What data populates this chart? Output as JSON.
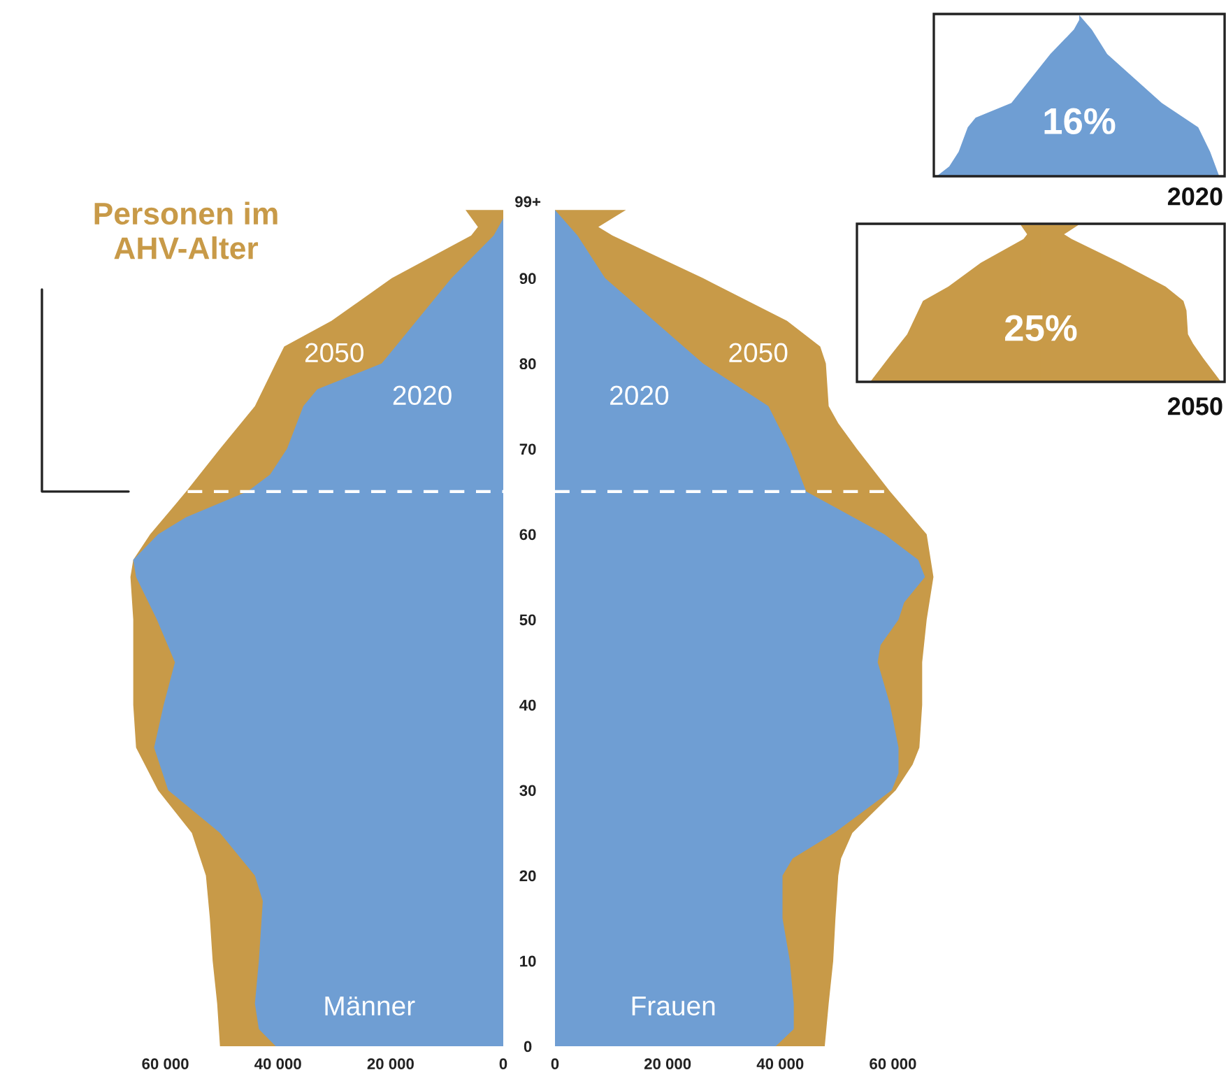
{
  "chart_data": [
    {
      "type": "area",
      "orientation": "horizontal",
      "xlim": [
        70000,
        0
      ],
      "xticks": [
        {
          "value": 60000,
          "label": "60 000"
        },
        {
          "value": 40000,
          "label": "40 000"
        },
        {
          "value": 20000,
          "label": "20 000"
        },
        0
      ],
      "ylim": [
        0,
        99
      ],
      "tick_labels": "x",
      "series": [
        {
          "name": "2050",
          "color": "#c89a48",
          "x": [
            0,
            5,
            10,
            15,
            20,
            25,
            30,
            35,
            40,
            45,
            50,
            55,
            57,
            60,
            65,
            70,
            75,
            80,
            82,
            85,
            90,
            95,
            96,
            98
          ],
          "values": [
            50300,
            50800,
            51600,
            52100,
            52800,
            55300,
            61300,
            65200,
            65700,
            65700,
            65700,
            66200,
            65700,
            62700,
            56300,
            50300,
            44100,
            40400,
            38900,
            30500,
            19800,
            5700,
            4500,
            6700
          ]
        },
        {
          "name": "2020",
          "color": "#6f9ed3",
          "x": [
            0,
            2,
            5,
            10,
            15,
            17,
            20,
            25,
            30,
            35,
            40,
            45,
            50,
            55,
            57,
            60,
            62,
            65,
            67,
            70,
            75,
            77,
            80,
            85,
            90,
            95,
            97
          ],
          "values": [
            40400,
            43400,
            44100,
            43400,
            42900,
            42700,
            44100,
            50300,
            59500,
            62000,
            60300,
            58300,
            61500,
            65200,
            65700,
            61300,
            56300,
            45400,
            41400,
            38400,
            35500,
            33000,
            21600,
            15400,
            9200,
            1700,
            0
          ]
        }
      ],
      "ref_lines": [
        {
          "axis": "y",
          "value": 65,
          "color": "#ffffff",
          "line_style": "dashed"
        }
      ],
      "annotations": [
        "Männer",
        "Personen im\nAHV-Alter"
      ]
    },
    {
      "type": "area",
      "orientation": "horizontal",
      "xlim": [
        0,
        70000
      ],
      "xticks": [
        0,
        {
          "value": 20000,
          "label": "20 000"
        },
        {
          "value": 40000,
          "label": "40 000"
        },
        {
          "value": 60000,
          "label": "60 000"
        }
      ],
      "ylim": [
        0,
        99
      ],
      "yticks": [
        0,
        10,
        20,
        30,
        40,
        50,
        60,
        70,
        80,
        90,
        {
          "value": 99,
          "label": "99+"
        }
      ],
      "series": [
        {
          "name": "2050",
          "color": "#c89a48",
          "x": [
            0,
            5,
            10,
            15,
            20,
            22,
            25,
            30,
            33,
            35,
            40,
            45,
            50,
            55,
            60,
            65,
            70,
            73,
            75,
            80,
            82,
            85,
            90,
            95,
            96,
            98
          ],
          "values": [
            47900,
            48600,
            49400,
            49800,
            50300,
            50800,
            52800,
            60500,
            63500,
            64700,
            65200,
            65200,
            66000,
            67200,
            66000,
            59500,
            53600,
            50300,
            48600,
            48100,
            47100,
            41200,
            26300,
            10200,
            7700,
            12600
          ]
        },
        {
          "name": "2020",
          "color": "#6f9ed3",
          "x": [
            0,
            2,
            5,
            10,
            15,
            20,
            22,
            25,
            30,
            32,
            35,
            40,
            45,
            47,
            50,
            52,
            55,
            57,
            60,
            65,
            70,
            75,
            80,
            85,
            90,
            95,
            98
          ],
          "values": [
            39200,
            42400,
            42400,
            41700,
            40400,
            40400,
            42200,
            49600,
            59800,
            61000,
            61000,
            59500,
            57300,
            57800,
            61000,
            62000,
            65700,
            64500,
            58500,
            44600,
            41700,
            37900,
            26300,
            17600,
            8900,
            4000,
            0
          ]
        }
      ],
      "ref_lines": [
        {
          "axis": "y",
          "value": 65,
          "color": "#ffffff",
          "line_style": "dashed"
        }
      ],
      "annotations": [
        "Frauen"
      ]
    },
    {
      "type": "other",
      "color": "#6f9ed3",
      "annotations": [
        "16%",
        "2020"
      ]
    },
    {
      "type": "other",
      "color": "#c89a48",
      "annotations": [
        "25%",
        "2050"
      ]
    }
  ]
}
